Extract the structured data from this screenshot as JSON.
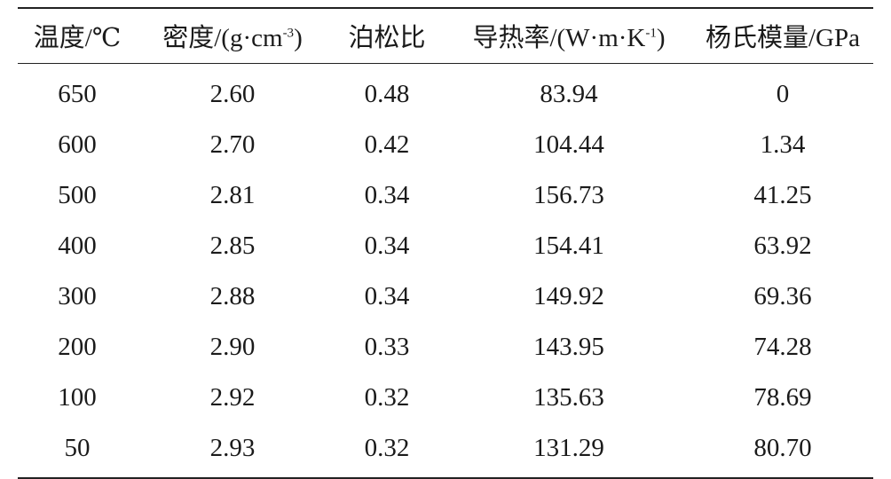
{
  "table": {
    "headers": [
      {
        "main": "温度/℃",
        "sup": "",
        "tail": ""
      },
      {
        "main": "密度/(g·cm",
        "sup": "-3",
        "tail": ")"
      },
      {
        "main": "泊松比",
        "sup": "",
        "tail": ""
      },
      {
        "main": "导热率/(W·m·K",
        "sup": "-1",
        "tail": ")"
      },
      {
        "main": "杨氏模量/GPa",
        "sup": "",
        "tail": ""
      }
    ],
    "rows": [
      [
        "650",
        "2.60",
        "0.48",
        "83.94",
        "0"
      ],
      [
        "600",
        "2.70",
        "0.42",
        "104.44",
        "1.34"
      ],
      [
        "500",
        "2.81",
        "0.34",
        "156.73",
        "41.25"
      ],
      [
        "400",
        "2.85",
        "0.34",
        "154.41",
        "63.92"
      ],
      [
        "300",
        "2.88",
        "0.34",
        "149.92",
        "69.36"
      ],
      [
        "200",
        "2.90",
        "0.33",
        "143.95",
        "74.28"
      ],
      [
        "100",
        "2.92",
        "0.32",
        "135.63",
        "78.69"
      ],
      [
        "50",
        "2.93",
        "0.32",
        "131.29",
        "80.70"
      ]
    ]
  }
}
